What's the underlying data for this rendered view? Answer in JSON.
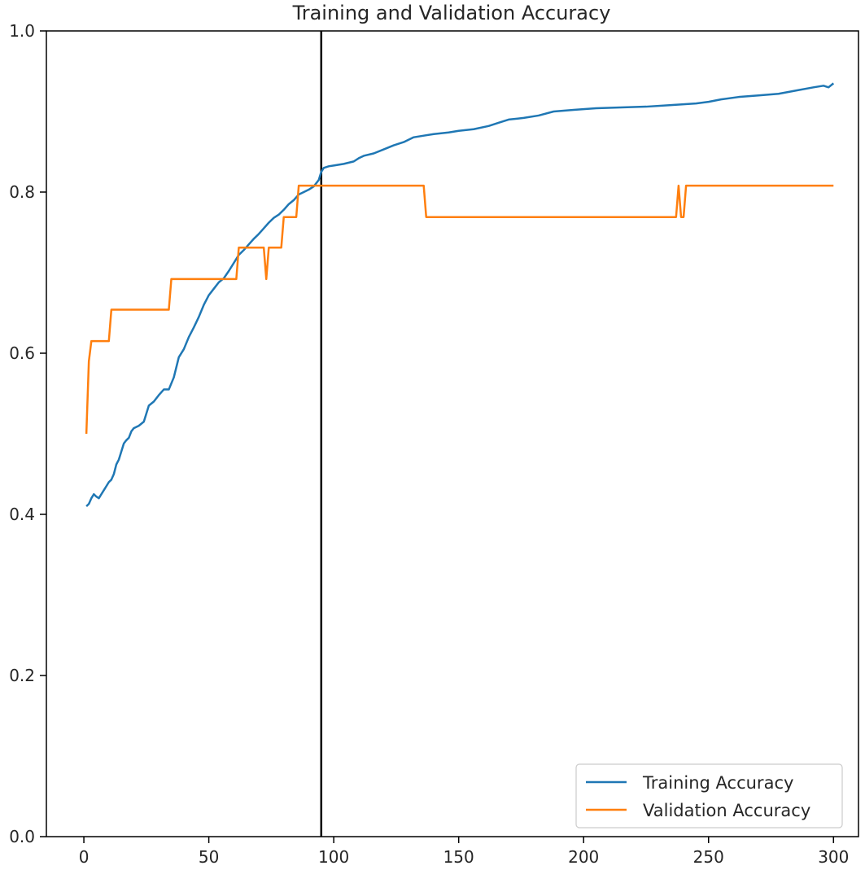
{
  "chart_data": {
    "type": "line",
    "title": "Training and Validation Accuracy",
    "xlabel": "",
    "ylabel": "",
    "xlim": [
      -15,
      310
    ],
    "ylim": [
      0.0,
      1.0
    ],
    "x_ticks": [
      0,
      50,
      100,
      150,
      200,
      250,
      300
    ],
    "y_ticks": [
      0.0,
      0.2,
      0.4,
      0.6,
      0.8,
      1.0
    ],
    "y_tick_labels": [
      "0.0",
      "0.2",
      "0.4",
      "0.6",
      "0.8",
      "1.0"
    ],
    "grid": false,
    "legend_position": "lower-right",
    "vertical_line_x": 95,
    "series": [
      {
        "name": "Training Accuracy",
        "color": "#1f77b4",
        "x": [
          1,
          2,
          3,
          4,
          5,
          6,
          7,
          8,
          9,
          10,
          11,
          12,
          13,
          14,
          15,
          16,
          17,
          18,
          19,
          20,
          22,
          24,
          25,
          26,
          28,
          30,
          32,
          33,
          34,
          36,
          38,
          40,
          42,
          44,
          46,
          48,
          50,
          52,
          54,
          56,
          58,
          60,
          62,
          64,
          66,
          68,
          70,
          72,
          74,
          76,
          78,
          80,
          82,
          84,
          86,
          88,
          90,
          92,
          94,
          95,
          96,
          98,
          100,
          104,
          108,
          110,
          112,
          116,
          120,
          124,
          128,
          132,
          136,
          140,
          146,
          150,
          156,
          162,
          166,
          170,
          176,
          182,
          188,
          196,
          205,
          215,
          225,
          235,
          245,
          250,
          255,
          262,
          270,
          278,
          285,
          292,
          296,
          298,
          300
        ],
        "values": [
          0.41,
          0.413,
          0.42,
          0.425,
          0.422,
          0.42,
          0.425,
          0.43,
          0.435,
          0.44,
          0.443,
          0.45,
          0.462,
          0.468,
          0.478,
          0.488,
          0.492,
          0.495,
          0.503,
          0.507,
          0.51,
          0.515,
          0.525,
          0.535,
          0.54,
          0.548,
          0.555,
          0.555,
          0.555,
          0.57,
          0.595,
          0.605,
          0.62,
          0.632,
          0.645,
          0.66,
          0.672,
          0.68,
          0.688,
          0.693,
          0.702,
          0.712,
          0.722,
          0.728,
          0.735,
          0.742,
          0.748,
          0.755,
          0.762,
          0.768,
          0.772,
          0.778,
          0.785,
          0.79,
          0.797,
          0.8,
          0.803,
          0.807,
          0.815,
          0.825,
          0.83,
          0.832,
          0.833,
          0.835,
          0.838,
          0.842,
          0.845,
          0.848,
          0.853,
          0.858,
          0.862,
          0.868,
          0.87,
          0.872,
          0.874,
          0.876,
          0.878,
          0.882,
          0.886,
          0.89,
          0.892,
          0.895,
          0.9,
          0.902,
          0.904,
          0.905,
          0.906,
          0.908,
          0.91,
          0.912,
          0.915,
          0.918,
          0.92,
          0.922,
          0.926,
          0.93,
          0.932,
          0.93,
          0.935
        ]
      },
      {
        "name": "Validation Accuracy",
        "color": "#ff7f0e",
        "x": [
          1,
          2,
          3,
          4,
          10,
          11,
          34,
          35,
          61,
          62,
          72,
          73,
          74,
          76,
          77,
          79,
          80,
          85,
          86,
          95,
          136,
          137,
          237,
          238,
          239,
          240,
          241,
          300
        ],
        "values": [
          0.5,
          0.59,
          0.615,
          0.615,
          0.615,
          0.654,
          0.654,
          0.692,
          0.692,
          0.731,
          0.731,
          0.692,
          0.731,
          0.731,
          0.731,
          0.731,
          0.769,
          0.769,
          0.808,
          0.808,
          0.808,
          0.769,
          0.769,
          0.808,
          0.769,
          0.769,
          0.808,
          0.808
        ]
      }
    ]
  }
}
